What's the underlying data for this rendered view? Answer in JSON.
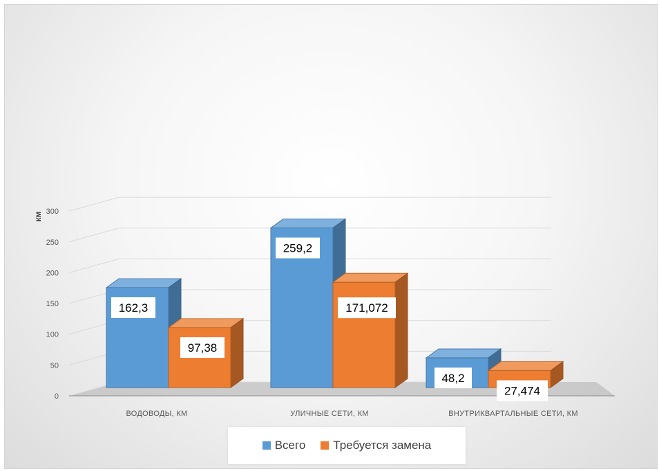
{
  "chart_data": {
    "type": "bar",
    "subtype": "3d-clustered-column",
    "categories": [
      "ВОДОВОДЫ, КМ",
      "УЛИЧНЫЕ СЕТИ, КМ",
      "ВНУТРИКВАРТАЛЬНЫЕ СЕТИ, КМ"
    ],
    "series": [
      {
        "name": "Всего",
        "values": [
          162.3,
          259.2,
          48.2
        ],
        "labels": [
          "162,3",
          "259,2",
          "48,2"
        ],
        "color": "#5b9bd5"
      },
      {
        "name": "Требуется замена",
        "values": [
          97.38,
          171.072,
          27.474
        ],
        "labels": [
          "97,38",
          "171,072",
          "27,474"
        ],
        "color": "#ed7d31"
      }
    ],
    "ylabel": "км",
    "ylim": [
      0,
      300
    ],
    "yticks": [
      "0",
      "50",
      "100",
      "150",
      "200",
      "250",
      "300"
    ],
    "grid": true,
    "legend": "bottom"
  }
}
